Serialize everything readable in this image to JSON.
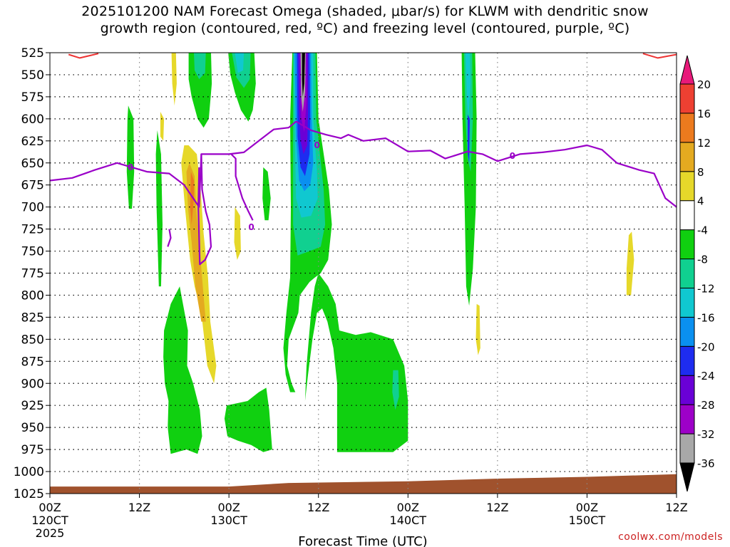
{
  "chart_data": {
    "type": "heatmap",
    "title_lines": [
      "2025101200 NAM Forecast Omega (shaded, μbar/s) for KLWM with dendritic snow",
      "growth region (contoured, red, ºC) and freezing level (contoured, purple, ºC)"
    ],
    "xlabel": "Forecast Time (UTC)",
    "ylabel": "",
    "y_axis": {
      "scale": "pressure (hPa), inverted",
      "range": [
        525,
        1025
      ],
      "ticks": [
        525,
        550,
        575,
        600,
        625,
        650,
        675,
        700,
        725,
        750,
        775,
        800,
        825,
        850,
        875,
        900,
        925,
        950,
        975,
        1000,
        1025
      ],
      "tick_labels": [
        "525",
        "550",
        "575",
        "600",
        "625",
        "650",
        "675",
        "700",
        "725",
        "750",
        "775",
        "800",
        "825",
        "850",
        "875",
        "900",
        "925",
        "950",
        "975",
        "1000",
        "1025"
      ]
    },
    "x_axis": {
      "range_hours": [
        0,
        84
      ],
      "ticks_hours": [
        0,
        12,
        24,
        36,
        48,
        60,
        72,
        84
      ],
      "tick_labels": [
        "00Z",
        "12Z",
        "00Z",
        "12Z",
        "00Z",
        "12Z",
        "00Z",
        "12Z"
      ],
      "date_labels": [
        {
          "hour": 0,
          "text": "120CT"
        },
        {
          "hour": 24,
          "text": "130CT"
        },
        {
          "hour": 48,
          "text": "140CT"
        },
        {
          "hour": 72,
          "text": "150CT"
        }
      ],
      "year_label": "2025"
    },
    "grid": true,
    "colorbar": {
      "levels": [
        -36,
        -32,
        -28,
        -24,
        -20,
        -16,
        -12,
        -8,
        -4,
        4,
        8,
        12,
        16,
        20
      ],
      "labels": [
        "-36",
        "-32",
        "-28",
        "-24",
        "-20",
        "-16",
        "-12",
        "-8",
        "-4",
        "4",
        "8",
        "12",
        "16",
        "20"
      ],
      "colors": [
        "#000000",
        "#a8a8a8",
        "#9d00c8",
        "#6a00d6",
        "#1e2cf0",
        "#0a90f0",
        "#10c8d0",
        "#10d090",
        "#10d010",
        "#ffffff",
        "#e6d82a",
        "#e4aa20",
        "#ec7a1e",
        "#ee4032",
        "#e8197a"
      ]
    },
    "freezing_level_hpa": [
      {
        "x": 0,
        "y": 670
      },
      {
        "x": 3,
        "y": 667
      },
      {
        "x": 6,
        "y": 658
      },
      {
        "x": 9,
        "y": 650
      },
      {
        "x": 11,
        "y": 655
      },
      {
        "x": 13,
        "y": 660
      },
      {
        "x": 16,
        "y": 662
      },
      {
        "x": 18,
        "y": 675
      },
      {
        "x": 20,
        "y": 700
      },
      {
        "x": 20.3,
        "y": 640
      },
      {
        "x": 24,
        "y": 640
      },
      {
        "x": 26,
        "y": 638
      },
      {
        "x": 28,
        "y": 625
      },
      {
        "x": 30,
        "y": 612
      },
      {
        "x": 32,
        "y": 610
      },
      {
        "x": 33,
        "y": 603
      },
      {
        "x": 35,
        "y": 613
      },
      {
        "x": 37,
        "y": 618
      },
      {
        "x": 39,
        "y": 622
      },
      {
        "x": 40,
        "y": 618
      },
      {
        "x": 42,
        "y": 625
      },
      {
        "x": 45,
        "y": 622
      },
      {
        "x": 48,
        "y": 637
      },
      {
        "x": 51,
        "y": 636
      },
      {
        "x": 53,
        "y": 645
      },
      {
        "x": 56,
        "y": 637
      },
      {
        "x": 58,
        "y": 640
      },
      {
        "x": 60,
        "y": 648
      },
      {
        "x": 63,
        "y": 640
      },
      {
        "x": 66,
        "y": 638
      },
      {
        "x": 69,
        "y": 635
      },
      {
        "x": 72,
        "y": 630
      },
      {
        "x": 74,
        "y": 635
      },
      {
        "x": 76,
        "y": 650
      },
      {
        "x": 79,
        "y": 658
      },
      {
        "x": 81,
        "y": 662
      },
      {
        "x": 82.5,
        "y": 690
      },
      {
        "x": 84,
        "y": 700
      }
    ],
    "freezing_level_contour_label": "0",
    "snow_growth_region_hpa": [
      {
        "x": 2.5,
        "y": 527
      },
      {
        "x": 4,
        "y": 531
      },
      {
        "x": 6.5,
        "y": 526
      }
    ],
    "snow_growth_region_right_hpa": [
      {
        "x": 79.5,
        "y": 526
      },
      {
        "x": 81.5,
        "y": 531
      },
      {
        "x": 84,
        "y": 527
      }
    ],
    "terrain_top_hpa": [
      {
        "x": 0,
        "y": 1017
      },
      {
        "x": 24,
        "y": 1017
      },
      {
        "x": 32,
        "y": 1013
      },
      {
        "x": 48,
        "y": 1011
      },
      {
        "x": 60,
        "y": 1008
      },
      {
        "x": 72,
        "y": 1006
      },
      {
        "x": 84,
        "y": 1003
      }
    ]
  },
  "watermark": "coolwx.com/models"
}
